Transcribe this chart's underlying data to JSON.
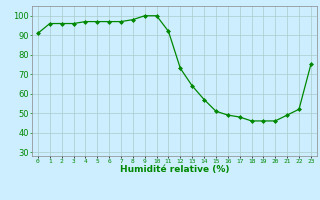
{
  "x": [
    0,
    1,
    2,
    3,
    4,
    5,
    6,
    7,
    8,
    9,
    10,
    11,
    12,
    13,
    14,
    15,
    16,
    17,
    18,
    19,
    20,
    21,
    22,
    23
  ],
  "y": [
    91,
    96,
    96,
    96,
    97,
    97,
    97,
    97,
    98,
    100,
    100,
    92,
    73,
    64,
    57,
    51,
    49,
    48,
    46,
    46,
    46,
    49,
    52,
    75
  ],
  "line_color": "#008800",
  "marker": "D",
  "marker_size": 2.0,
  "bg_color": "#cceeff",
  "grid_color": "#aacccc",
  "xlabel": "Humidité relative (%)",
  "xlabel_color": "#008800",
  "tick_color": "#008800",
  "ylim": [
    28,
    105
  ],
  "yticks": [
    30,
    40,
    50,
    60,
    70,
    80,
    90,
    100
  ],
  "xlim": [
    -0.5,
    23.5
  ],
  "xticklabels": [
    "0",
    "1",
    "2",
    "3",
    "4",
    "5",
    "6",
    "7",
    "8",
    "9",
    "10",
    "11",
    "12",
    "13",
    "14",
    "15",
    "16",
    "17",
    "18",
    "19",
    "20",
    "21",
    "22",
    "23"
  ]
}
